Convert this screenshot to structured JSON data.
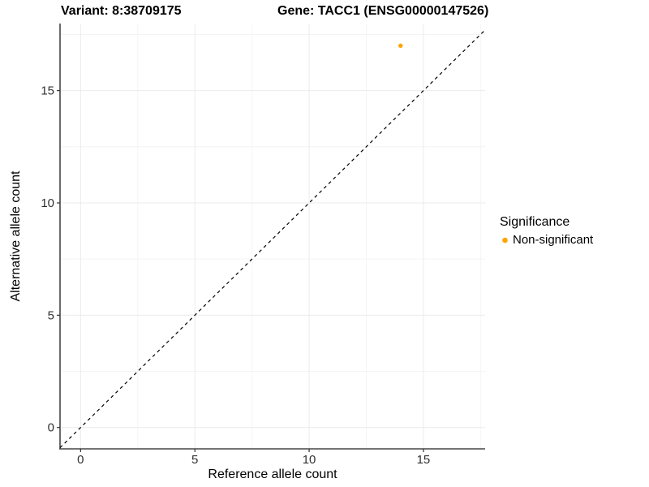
{
  "chart_data": {
    "type": "scatter",
    "titles": {
      "left": "Variant: 8:38709175",
      "right": "Gene: TACC1 (ENSG00000147526)"
    },
    "xlabel": "Reference allele count",
    "ylabel": "Alternative allele count",
    "xlim": [
      -0.9,
      17.7
    ],
    "ylim": [
      -0.95,
      17.95
    ],
    "x_major_ticks": [
      0,
      5,
      10,
      15
    ],
    "y_major_ticks": [
      0,
      5,
      10,
      15
    ],
    "x_minor_ticks": [
      2.5,
      7.5,
      12.5,
      17.5
    ],
    "y_minor_ticks": [
      2.5,
      7.5,
      12.5,
      17.5
    ],
    "grid": true,
    "legend_position": "right",
    "reference_line": {
      "type": "identity",
      "slope": 1,
      "intercept": 0,
      "style": "dashed",
      "color": "#000000"
    },
    "points": [
      {
        "x": 14,
        "y": 17,
        "series": "Non-significant"
      }
    ],
    "series_colors": {
      "Non-significant": "#FFA500"
    },
    "legend": {
      "title": "Significance",
      "items": [
        {
          "label": "Non-significant",
          "color": "#FFA500"
        }
      ]
    },
    "colors": {
      "grid_major": "#EBEBEB",
      "grid_minor": "#F4F4F4",
      "axis_line": "#464646",
      "tick": "#333333",
      "tick_text": "#303030"
    }
  }
}
